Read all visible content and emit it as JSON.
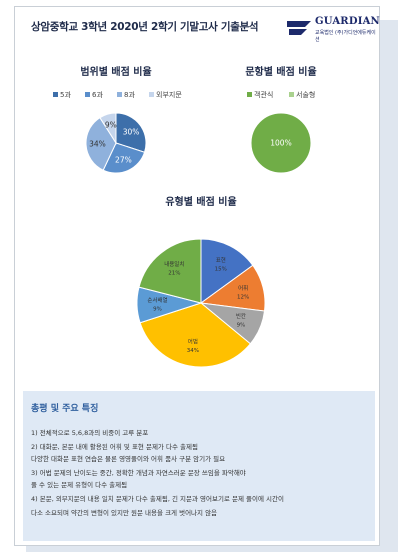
{
  "title": "상암중학교 3학년 2020년 2학기 기말고사 기출분석",
  "logo": {
    "name": "GUARDIAN",
    "sub": "교육법인 (주)가디언에듀케이션"
  },
  "chart_data": [
    {
      "type": "pie",
      "title": "범위별 배점 비율",
      "legend": [
        "5과",
        "6과",
        "8과",
        "외부지문"
      ],
      "categories": [
        "5과",
        "6과",
        "8과",
        "외부지문"
      ],
      "values": [
        30,
        27,
        34,
        9
      ],
      "labels": [
        "30%",
        "27%",
        "34%",
        "9%"
      ],
      "colors": [
        "#3d6faa",
        "#5a8ecb",
        "#8fb1dc",
        "#c5d5ec"
      ]
    },
    {
      "type": "pie",
      "title": "문항별 배점 비율",
      "legend": [
        "객관식",
        "서술형"
      ],
      "categories": [
        "객관식",
        "서술형"
      ],
      "values": [
        100,
        0
      ],
      "labels": [
        "100%",
        ""
      ],
      "colors": [
        "#70ad47",
        "#a9d18e"
      ]
    },
    {
      "type": "pie",
      "title": "유형별 배점 비율",
      "categories": [
        "표현",
        "어휘",
        "빈칸",
        "어법",
        "순서배열",
        "내용일치"
      ],
      "values": [
        15,
        12,
        9,
        34,
        9,
        21
      ],
      "labels": [
        "표현\n15%",
        "어휘\n12%",
        "빈칸\n9%",
        "어법\n34%",
        "순서배열\n9%",
        "내용일치\n21%"
      ],
      "colors": [
        "#4472c4",
        "#ed7d31",
        "#a5a5a5",
        "#ffc000",
        "#5b9bd5",
        "#70ad47"
      ]
    }
  ],
  "summary": {
    "title": "총평 및 주요 특징",
    "lines": [
      "1) 전체적으로 5,6,8과의 비중이 고루 분포",
      "2) 대화문, 본문 내에 활용된 어휘 및 표현 문제가 다수 출제됨",
      "    다양한 대화문 표현 연습은 물론 영영풀이와 어휘 품사 구분 암기가 필요",
      "3) 어법 문제의 난이도는 중간, 정확한 개념과 자연스러운 문장 쓰임을 파악해야",
      "    풀 수 있는 문제 유형이 다수 출제됨",
      "4) 본문, 외부지문의 내용 일치 문제가 다수 출제됨, 긴 지문과 영어보기로 문제 풀이에 시간이",
      "    다소 소요되며 약간의 변형이 있지만 원문 내용을 크게 벗어나지 않음"
    ]
  }
}
